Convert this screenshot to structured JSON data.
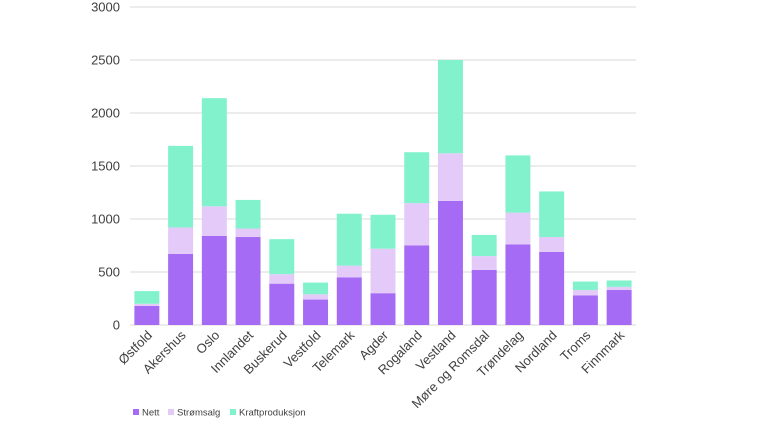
{
  "chart_data": {
    "type": "bar",
    "stacked": true,
    "categories": [
      "Østfold",
      "Akershus",
      "Oslo",
      "Innlandet",
      "Buskerud",
      "Vestfold",
      "Telemark",
      "Agder",
      "Rogaland",
      "Vestland",
      "Møre og Romsdal",
      "Trøndelag",
      "Nordland",
      "Troms",
      "Finnmark"
    ],
    "series": [
      {
        "name": "Nett",
        "color": "#a66bf4",
        "values": [
          180,
          670,
          840,
          830,
          390,
          240,
          450,
          300,
          750,
          1170,
          520,
          760,
          690,
          280,
          330
        ]
      },
      {
        "name": "Strømsalg",
        "color": "#e3caf9",
        "values": [
          20,
          250,
          280,
          80,
          90,
          50,
          110,
          420,
          400,
          450,
          130,
          300,
          140,
          50,
          30
        ]
      },
      {
        "name": "Kraftproduksjon",
        "color": "#81f2cc",
        "values": [
          120,
          770,
          1020,
          270,
          330,
          110,
          490,
          320,
          480,
          880,
          200,
          540,
          430,
          80,
          60
        ]
      }
    ],
    "ylim": [
      0,
      3000
    ],
    "yticks": [
      0,
      500,
      1000,
      1500,
      2000,
      2500,
      3000
    ],
    "grid": true,
    "legend_position": "bottom-left"
  }
}
